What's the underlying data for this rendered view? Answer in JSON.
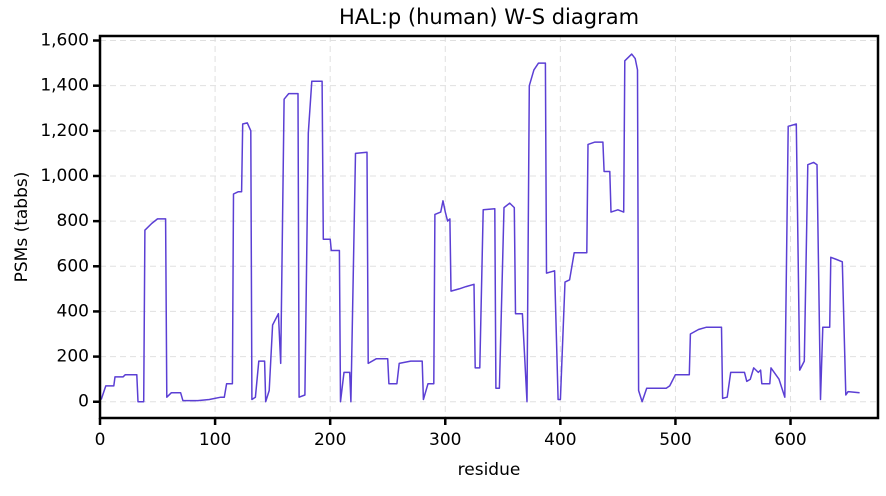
{
  "chart_data": {
    "type": "line",
    "title": "HAL:p (human) W-S diagram",
    "xlabel": "residue",
    "ylabel": "PSMs (tabbs)",
    "xlim": [
      0,
      676
    ],
    "ylim": [
      -72,
      1620
    ],
    "xticks": [
      0,
      100,
      200,
      300,
      400,
      500,
      600
    ],
    "yticks": [
      0,
      200,
      400,
      600,
      800,
      {
        "value": 1000,
        "label": "1,000"
      },
      {
        "value": 1200,
        "label": "1,200"
      },
      {
        "value": 1400,
        "label": "1,400"
      },
      {
        "value": 1600,
        "label": "1,600"
      }
    ],
    "grid": true,
    "x": [
      1,
      5,
      12,
      13,
      20,
      22,
      32,
      33,
      38,
      39,
      45,
      50,
      57,
      58,
      62,
      70,
      72,
      85,
      95,
      105,
      108,
      110,
      115,
      116,
      120,
      123,
      124,
      128,
      131,
      132,
      135,
      138,
      143,
      144,
      147,
      150,
      155,
      157,
      160,
      164,
      172,
      173,
      178,
      181,
      184,
      193,
      194,
      200,
      201,
      208,
      209,
      212,
      217,
      218,
      222,
      232,
      233,
      240,
      250,
      251,
      258,
      260,
      270,
      280,
      281,
      285,
      290,
      291,
      296,
      298,
      300,
      302,
      304,
      305,
      312,
      318,
      325,
      326,
      330,
      333,
      343,
      344,
      347,
      351,
      356,
      360,
      361,
      367,
      371,
      373,
      377,
      381,
      387,
      388,
      395,
      398,
      400,
      404,
      408,
      412,
      423,
      424,
      430,
      437,
      438,
      443,
      444,
      450,
      455,
      456,
      462,
      465,
      467,
      468,
      471,
      475,
      492,
      495,
      500,
      512,
      513,
      520,
      527,
      540,
      541,
      545,
      548,
      560,
      562,
      565,
      568,
      572,
      574,
      575,
      582,
      583,
      590,
      595,
      598,
      605,
      608,
      612,
      615,
      620,
      623,
      626,
      628,
      634,
      635,
      640,
      645,
      648,
      650,
      660
    ],
    "series": [
      {
        "name": "PSMs",
        "color": "#5b3fd4",
        "values": [
          10,
          70,
          70,
          110,
          110,
          120,
          120,
          0,
          0,
          760,
          790,
          810,
          810,
          20,
          40,
          40,
          5,
          5,
          10,
          20,
          20,
          80,
          80,
          920,
          930,
          930,
          1230,
          1235,
          1200,
          10,
          20,
          180,
          180,
          0,
          50,
          340,
          390,
          170,
          1340,
          1365,
          1365,
          20,
          30,
          1190,
          1420,
          1420,
          720,
          720,
          670,
          670,
          0,
          130,
          130,
          0,
          1100,
          1105,
          170,
          190,
          190,
          80,
          80,
          170,
          180,
          180,
          10,
          80,
          80,
          830,
          840,
          890,
          840,
          800,
          810,
          490,
          500,
          510,
          520,
          150,
          150,
          850,
          855,
          60,
          60,
          860,
          880,
          860,
          390,
          390,
          0,
          1400,
          1470,
          1500,
          1500,
          570,
          580,
          10,
          10,
          530,
          540,
          660,
          660,
          1140,
          1150,
          1150,
          1020,
          1020,
          840,
          850,
          840,
          1510,
          1540,
          1520,
          1470,
          50,
          0,
          60,
          60,
          70,
          120,
          120,
          300,
          320,
          330,
          330,
          15,
          20,
          130,
          130,
          90,
          100,
          150,
          130,
          140,
          80,
          80,
          150,
          100,
          20,
          1220,
          1230,
          140,
          180,
          1050,
          1060,
          1050,
          10,
          330,
          330,
          640,
          630,
          620,
          30,
          45,
          40
        ]
      }
    ]
  }
}
